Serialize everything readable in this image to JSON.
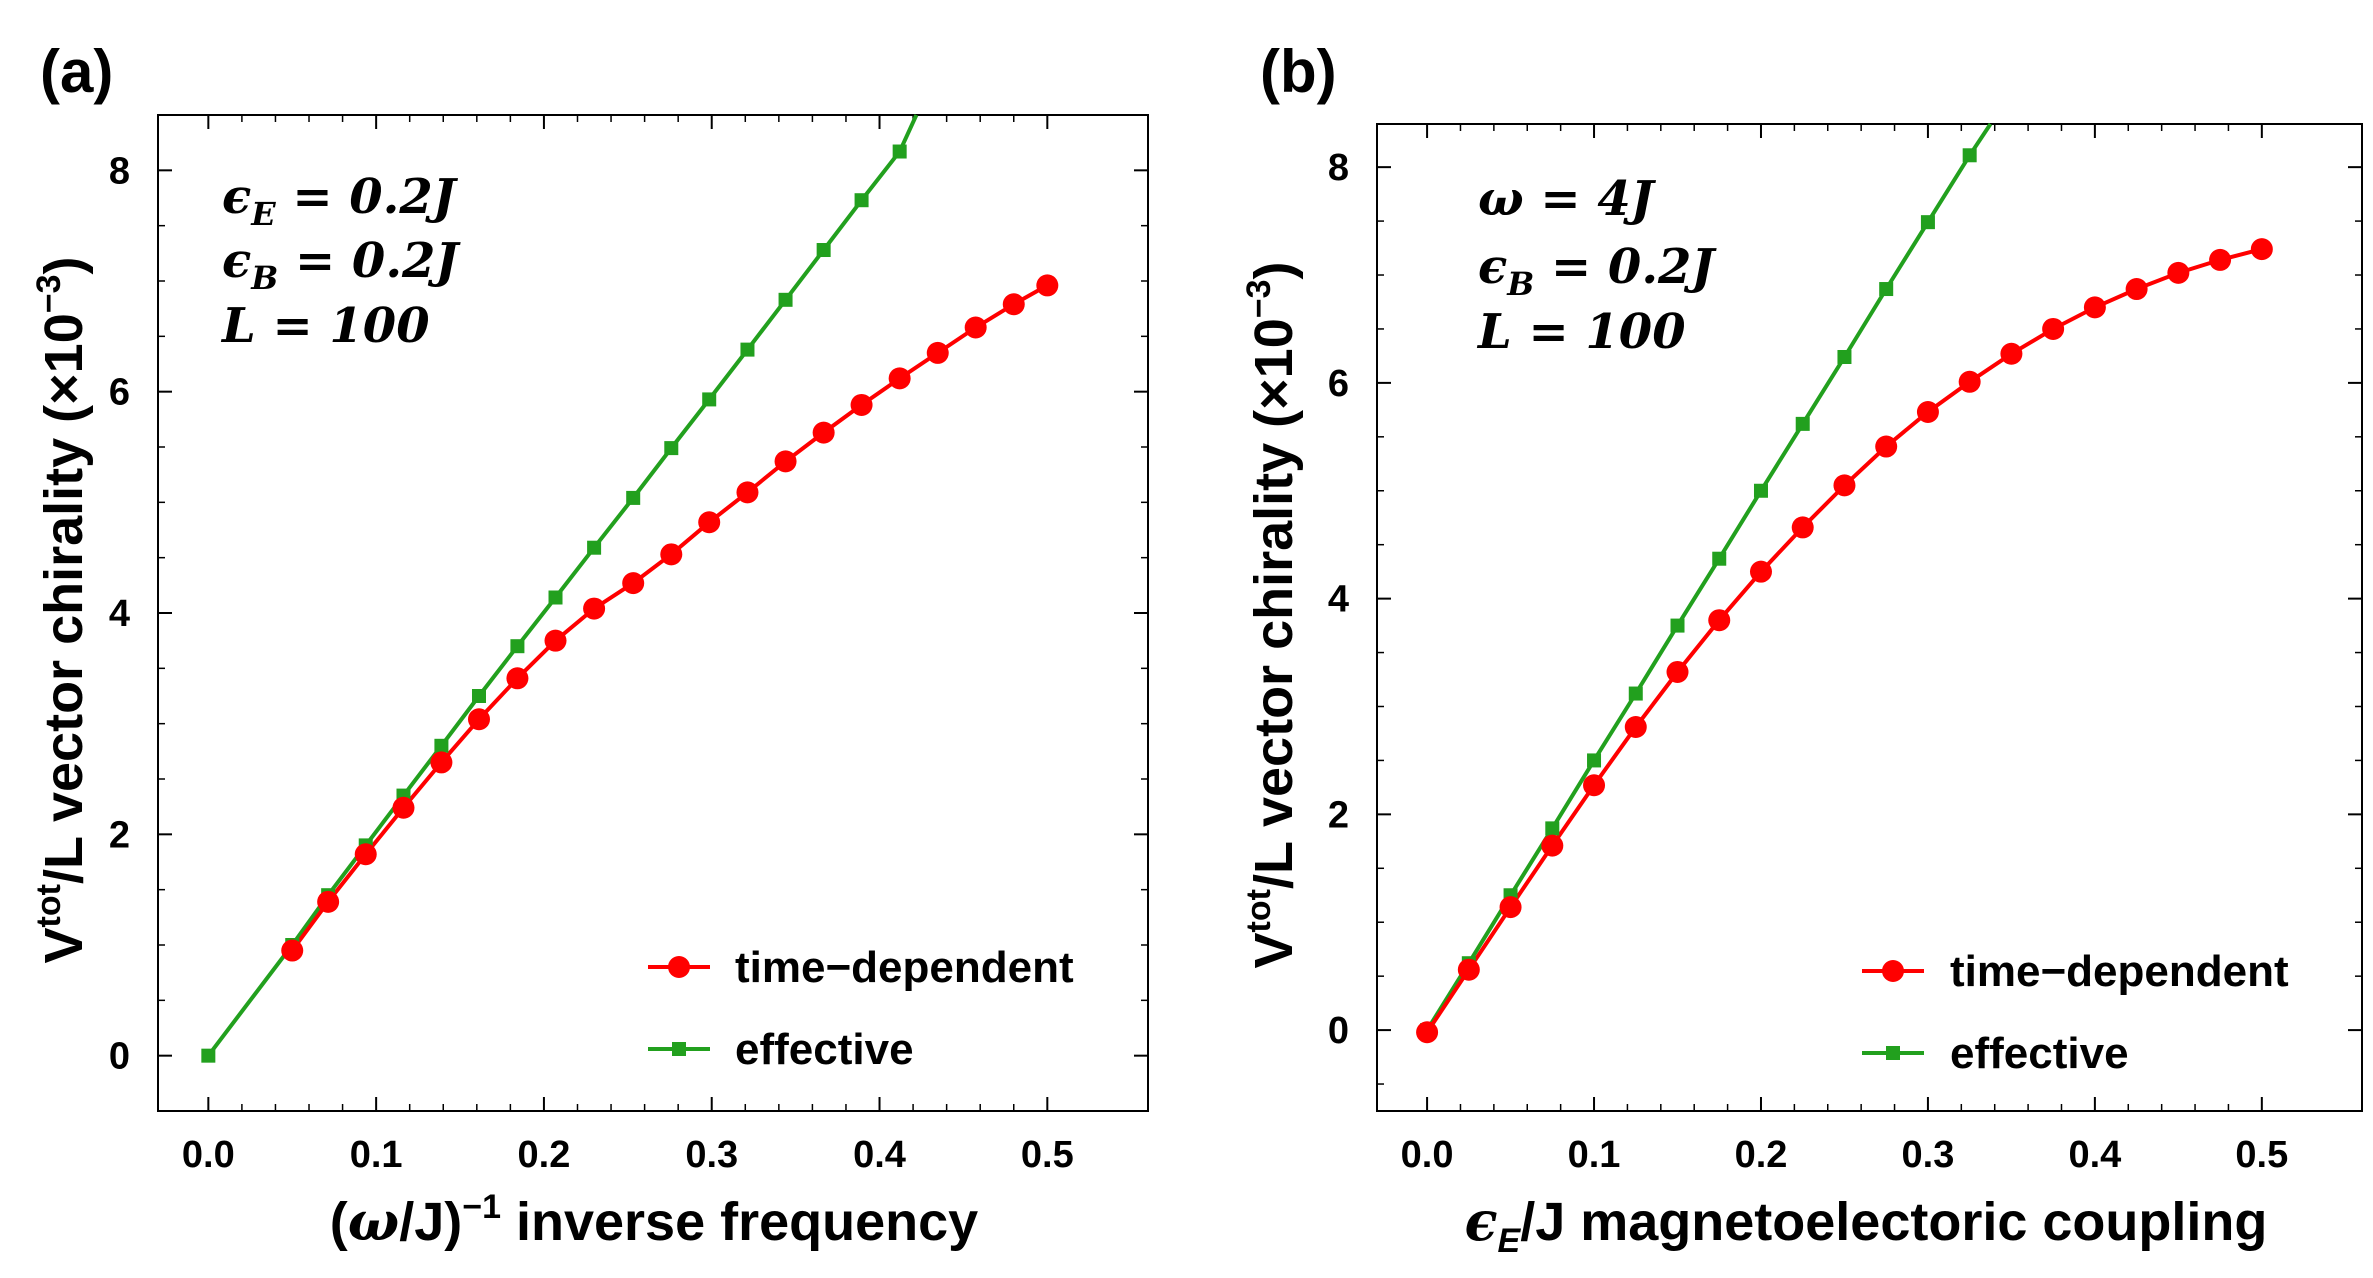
{
  "chart_data": [
    {
      "panel_label": "(a)",
      "type": "line",
      "xlabel": {
        "pre": "(",
        "omega": "ω",
        "mid": "/J)",
        "sup": "−1",
        "post": " inverse frequency"
      },
      "ylabel": {
        "main": "V",
        "sup": "tot",
        "post": "/L vector chirality (×10",
        "exp": "−3",
        "close": ")"
      },
      "xlim": [
        -0.03,
        0.56
      ],
      "ylim": [
        -0.5,
        8.5
      ],
      "xticks": [
        0.0,
        0.1,
        0.2,
        0.3,
        0.4,
        0.5
      ],
      "xtick_labels": [
        "0.0",
        "0.1",
        "0.2",
        "0.3",
        "0.4",
        "0.5"
      ],
      "yticks": [
        0,
        2,
        4,
        6,
        8
      ],
      "ytick_labels": [
        "0",
        "2",
        "4",
        "6",
        "8"
      ],
      "annotations": [
        {
          "sym": "ϵ",
          "sub": "E",
          "rest": " = 0.2J"
        },
        {
          "sym": "ϵ",
          "sub": "B",
          "rest": " = 0.2J"
        },
        {
          "sym": "L",
          "sub": "",
          "rest": " = 100"
        }
      ],
      "legend_position": "bottom-right",
      "series": [
        {
          "name": "time−dependent",
          "color": "#ff0000",
          "marker": "circle",
          "x": [
            0.05,
            0.0714,
            0.0938,
            0.1163,
            0.1389,
            0.1613,
            0.1842,
            0.2069,
            0.2299,
            0.2532,
            0.2759,
            0.2985,
            0.3213,
            0.344,
            0.3667,
            0.3893,
            0.412,
            0.4347,
            0.4573,
            0.48,
            0.5
          ],
          "y": [
            0.95,
            1.39,
            1.82,
            2.24,
            2.65,
            3.04,
            3.41,
            3.75,
            4.04,
            4.27,
            4.53,
            4.82,
            5.09,
            5.37,
            5.63,
            5.88,
            6.12,
            6.35,
            6.58,
            6.79,
            6.96
          ]
        },
        {
          "name": "effective",
          "color": "#22a01e",
          "marker": "square",
          "x": [
            0.0,
            0.05,
            0.0714,
            0.0938,
            0.1163,
            0.1389,
            0.1613,
            0.1842,
            0.2069,
            0.2299,
            0.2532,
            0.2759,
            0.2985,
            0.3213,
            0.344,
            0.3667,
            0.3893,
            0.412,
            0.422
          ],
          "y": [
            0.0,
            1.0,
            1.45,
            1.9,
            2.35,
            2.8,
            3.25,
            3.7,
            4.14,
            4.59,
            5.04,
            5.49,
            5.93,
            6.38,
            6.83,
            7.28,
            7.73,
            8.17,
            8.5
          ]
        }
      ]
    },
    {
      "panel_label": "(b)",
      "type": "line",
      "xlabel": {
        "sym": "ϵ",
        "sub": "E",
        "post": "/J magnetoelectoric coupling"
      },
      "ylabel": {
        "main": "V",
        "sup": "tot",
        "post": "/L vector chirality (×10",
        "exp": "−3",
        "close": ")"
      },
      "xlim": [
        -0.03,
        0.56
      ],
      "ylim": [
        -0.75,
        8.4
      ],
      "xticks": [
        0.0,
        0.1,
        0.2,
        0.3,
        0.4,
        0.5
      ],
      "xtick_labels": [
        "0.0",
        "0.1",
        "0.2",
        "0.3",
        "0.4",
        "0.5"
      ],
      "yticks": [
        0,
        2,
        4,
        6,
        8
      ],
      "ytick_labels": [
        "0",
        "2",
        "4",
        "6",
        "8"
      ],
      "annotations": [
        {
          "sym": "ω",
          "sub": "",
          "rest": " = 4J"
        },
        {
          "sym": "ϵ",
          "sub": "B",
          "rest": " = 0.2J"
        },
        {
          "sym": "L",
          "sub": "",
          "rest": " = 100"
        }
      ],
      "legend_position": "bottom-right",
      "series": [
        {
          "name": "time−dependent",
          "color": "#ff0000",
          "marker": "circle",
          "x": [
            0.0,
            0.025,
            0.05,
            0.075,
            0.1,
            0.125,
            0.15,
            0.175,
            0.2,
            0.225,
            0.25,
            0.275,
            0.3,
            0.325,
            0.35,
            0.375,
            0.4,
            0.425,
            0.45,
            0.475,
            0.5
          ],
          "y": [
            -0.02,
            0.56,
            1.14,
            1.71,
            2.27,
            2.81,
            3.32,
            3.8,
            4.25,
            4.66,
            5.05,
            5.41,
            5.73,
            6.01,
            6.27,
            6.5,
            6.7,
            6.87,
            7.02,
            7.14,
            7.24
          ]
        },
        {
          "name": "effective",
          "color": "#22a01e",
          "marker": "square",
          "x": [
            0.0,
            0.025,
            0.05,
            0.075,
            0.1,
            0.125,
            0.15,
            0.175,
            0.2,
            0.225,
            0.25,
            0.275,
            0.3,
            0.325,
            0.3375
          ],
          "y": [
            0.0,
            0.62,
            1.25,
            1.87,
            2.5,
            3.12,
            3.75,
            4.37,
            5.0,
            5.62,
            6.24,
            6.87,
            7.49,
            8.11,
            8.4
          ]
        }
      ]
    }
  ]
}
